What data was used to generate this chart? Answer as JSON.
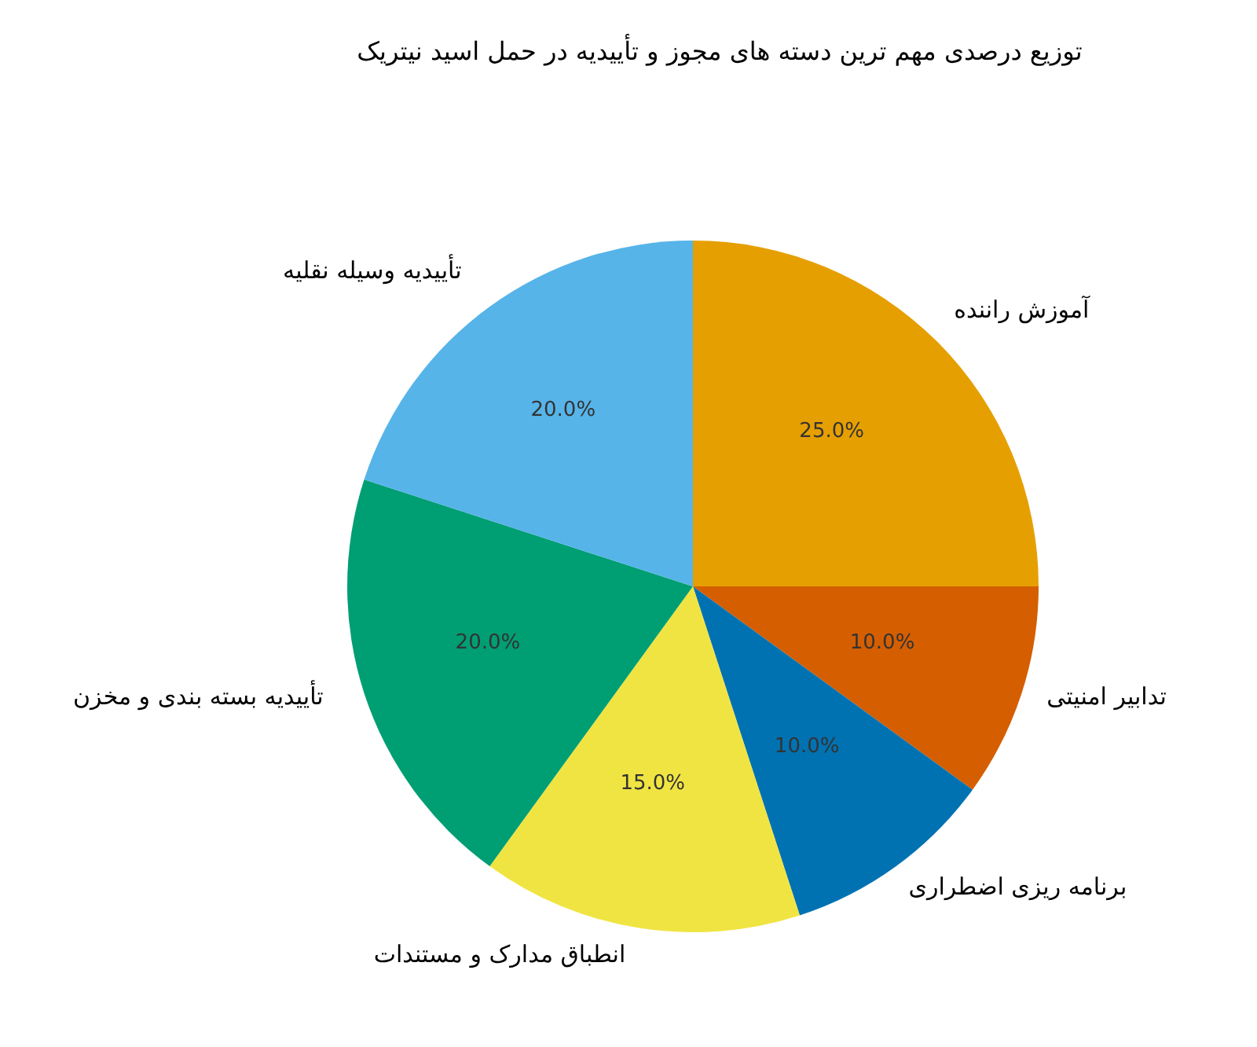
{
  "chart_data": {
    "type": "pie",
    "title": "توزیع درصدی مهم ترین دسته های مجوز و تأییدیه در حمل اسید نیتریک",
    "categories": [
      "آموزش راننده",
      "تدابیر امنیتی",
      "برنامه ریزی اضطراری",
      "انطباق مدارک و مستندات",
      "تأییدیه بسته بندی و مخزن",
      "تأییدیه وسیله نقلیه"
    ],
    "values": [
      25,
      10,
      10,
      15,
      20,
      20
    ],
    "value_labels": [
      "25.0%",
      "10.0%",
      "10.0%",
      "15.0%",
      "20.0%",
      "20.0%"
    ],
    "colors": [
      "#e69f00",
      "#d55e00",
      "#0072b2",
      "#f0e442",
      "#009e73",
      "#56b4e9"
    ]
  }
}
